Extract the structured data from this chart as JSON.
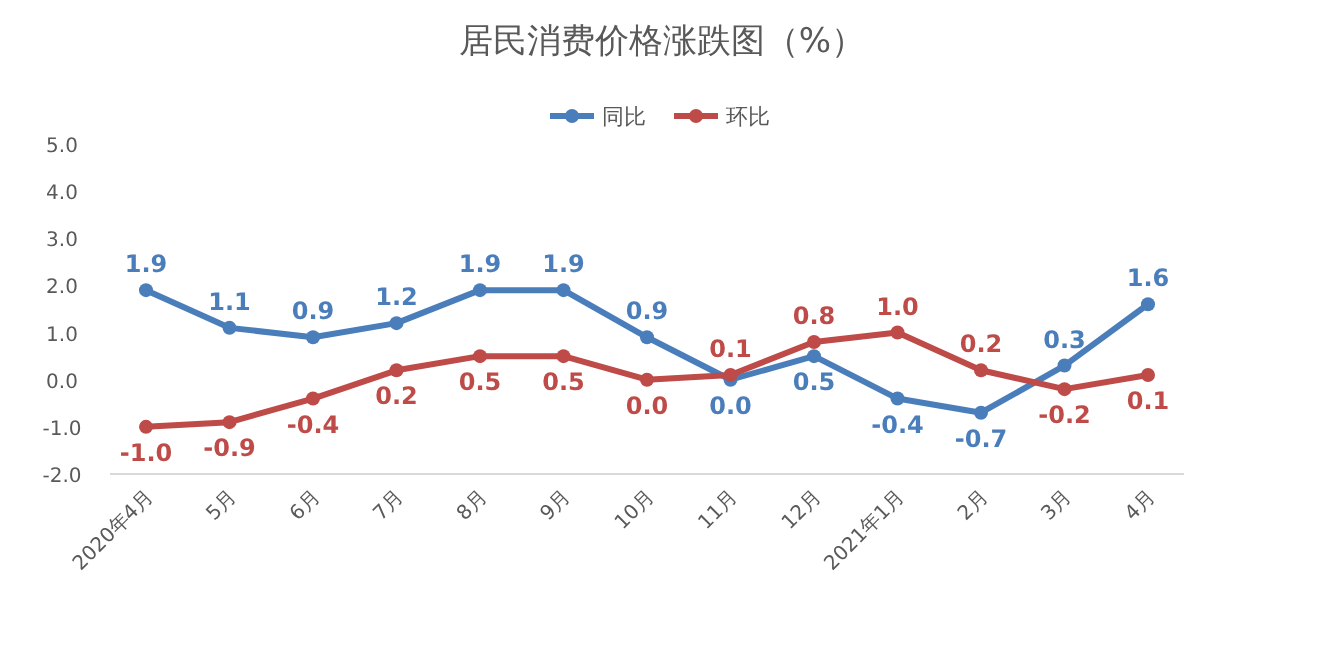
{
  "chart_data": {
    "type": "line",
    "title": "居民消费价格涨跌图（%）",
    "categories": [
      "2020年4月",
      "5月",
      "6月",
      "7月",
      "8月",
      "9月",
      "10月",
      "11月",
      "12月",
      "2021年1月",
      "2月",
      "3月",
      "4月"
    ],
    "series": [
      {
        "name": "同比",
        "color": "#4a7ebb",
        "values": [
          1.9,
          1.1,
          0.9,
          1.2,
          1.9,
          1.9,
          0.9,
          0.0,
          0.5,
          -0.4,
          -0.7,
          0.3,
          1.6
        ],
        "value_labels": [
          "1.9",
          "1.1",
          "0.9",
          "1.2",
          "1.9",
          "1.9",
          "0.9",
          "0.0",
          "0.5",
          "-0.4",
          "-0.7",
          "0.3",
          "1.6"
        ]
      },
      {
        "name": "环比",
        "color": "#be4b48",
        "values": [
          -1.0,
          -0.9,
          -0.4,
          0.2,
          0.5,
          0.5,
          0.0,
          0.1,
          0.8,
          1.0,
          0.2,
          -0.2,
          0.1
        ],
        "value_labels": [
          "-1.0",
          "-0.9",
          "-0.4",
          "0.2",
          "0.5",
          "0.5",
          "0.0",
          "0.1",
          "0.8",
          "1.0",
          "0.2",
          "-0.2",
          "0.1"
        ]
      }
    ],
    "ylim": [
      -2,
      5
    ],
    "yticks": [
      {
        "value": -2,
        "label": "-2.0"
      },
      {
        "value": -1,
        "label": "-1.0"
      },
      {
        "value": 0,
        "label": "0.0"
      },
      {
        "value": 1,
        "label": "1.0"
      },
      {
        "value": 2,
        "label": "2.0"
      },
      {
        "value": 3,
        "label": "3.0"
      },
      {
        "value": 4,
        "label": "4.0"
      },
      {
        "value": 5,
        "label": "5.0"
      }
    ],
    "legend": "top",
    "marker": "circle",
    "line_style": "solid"
  }
}
